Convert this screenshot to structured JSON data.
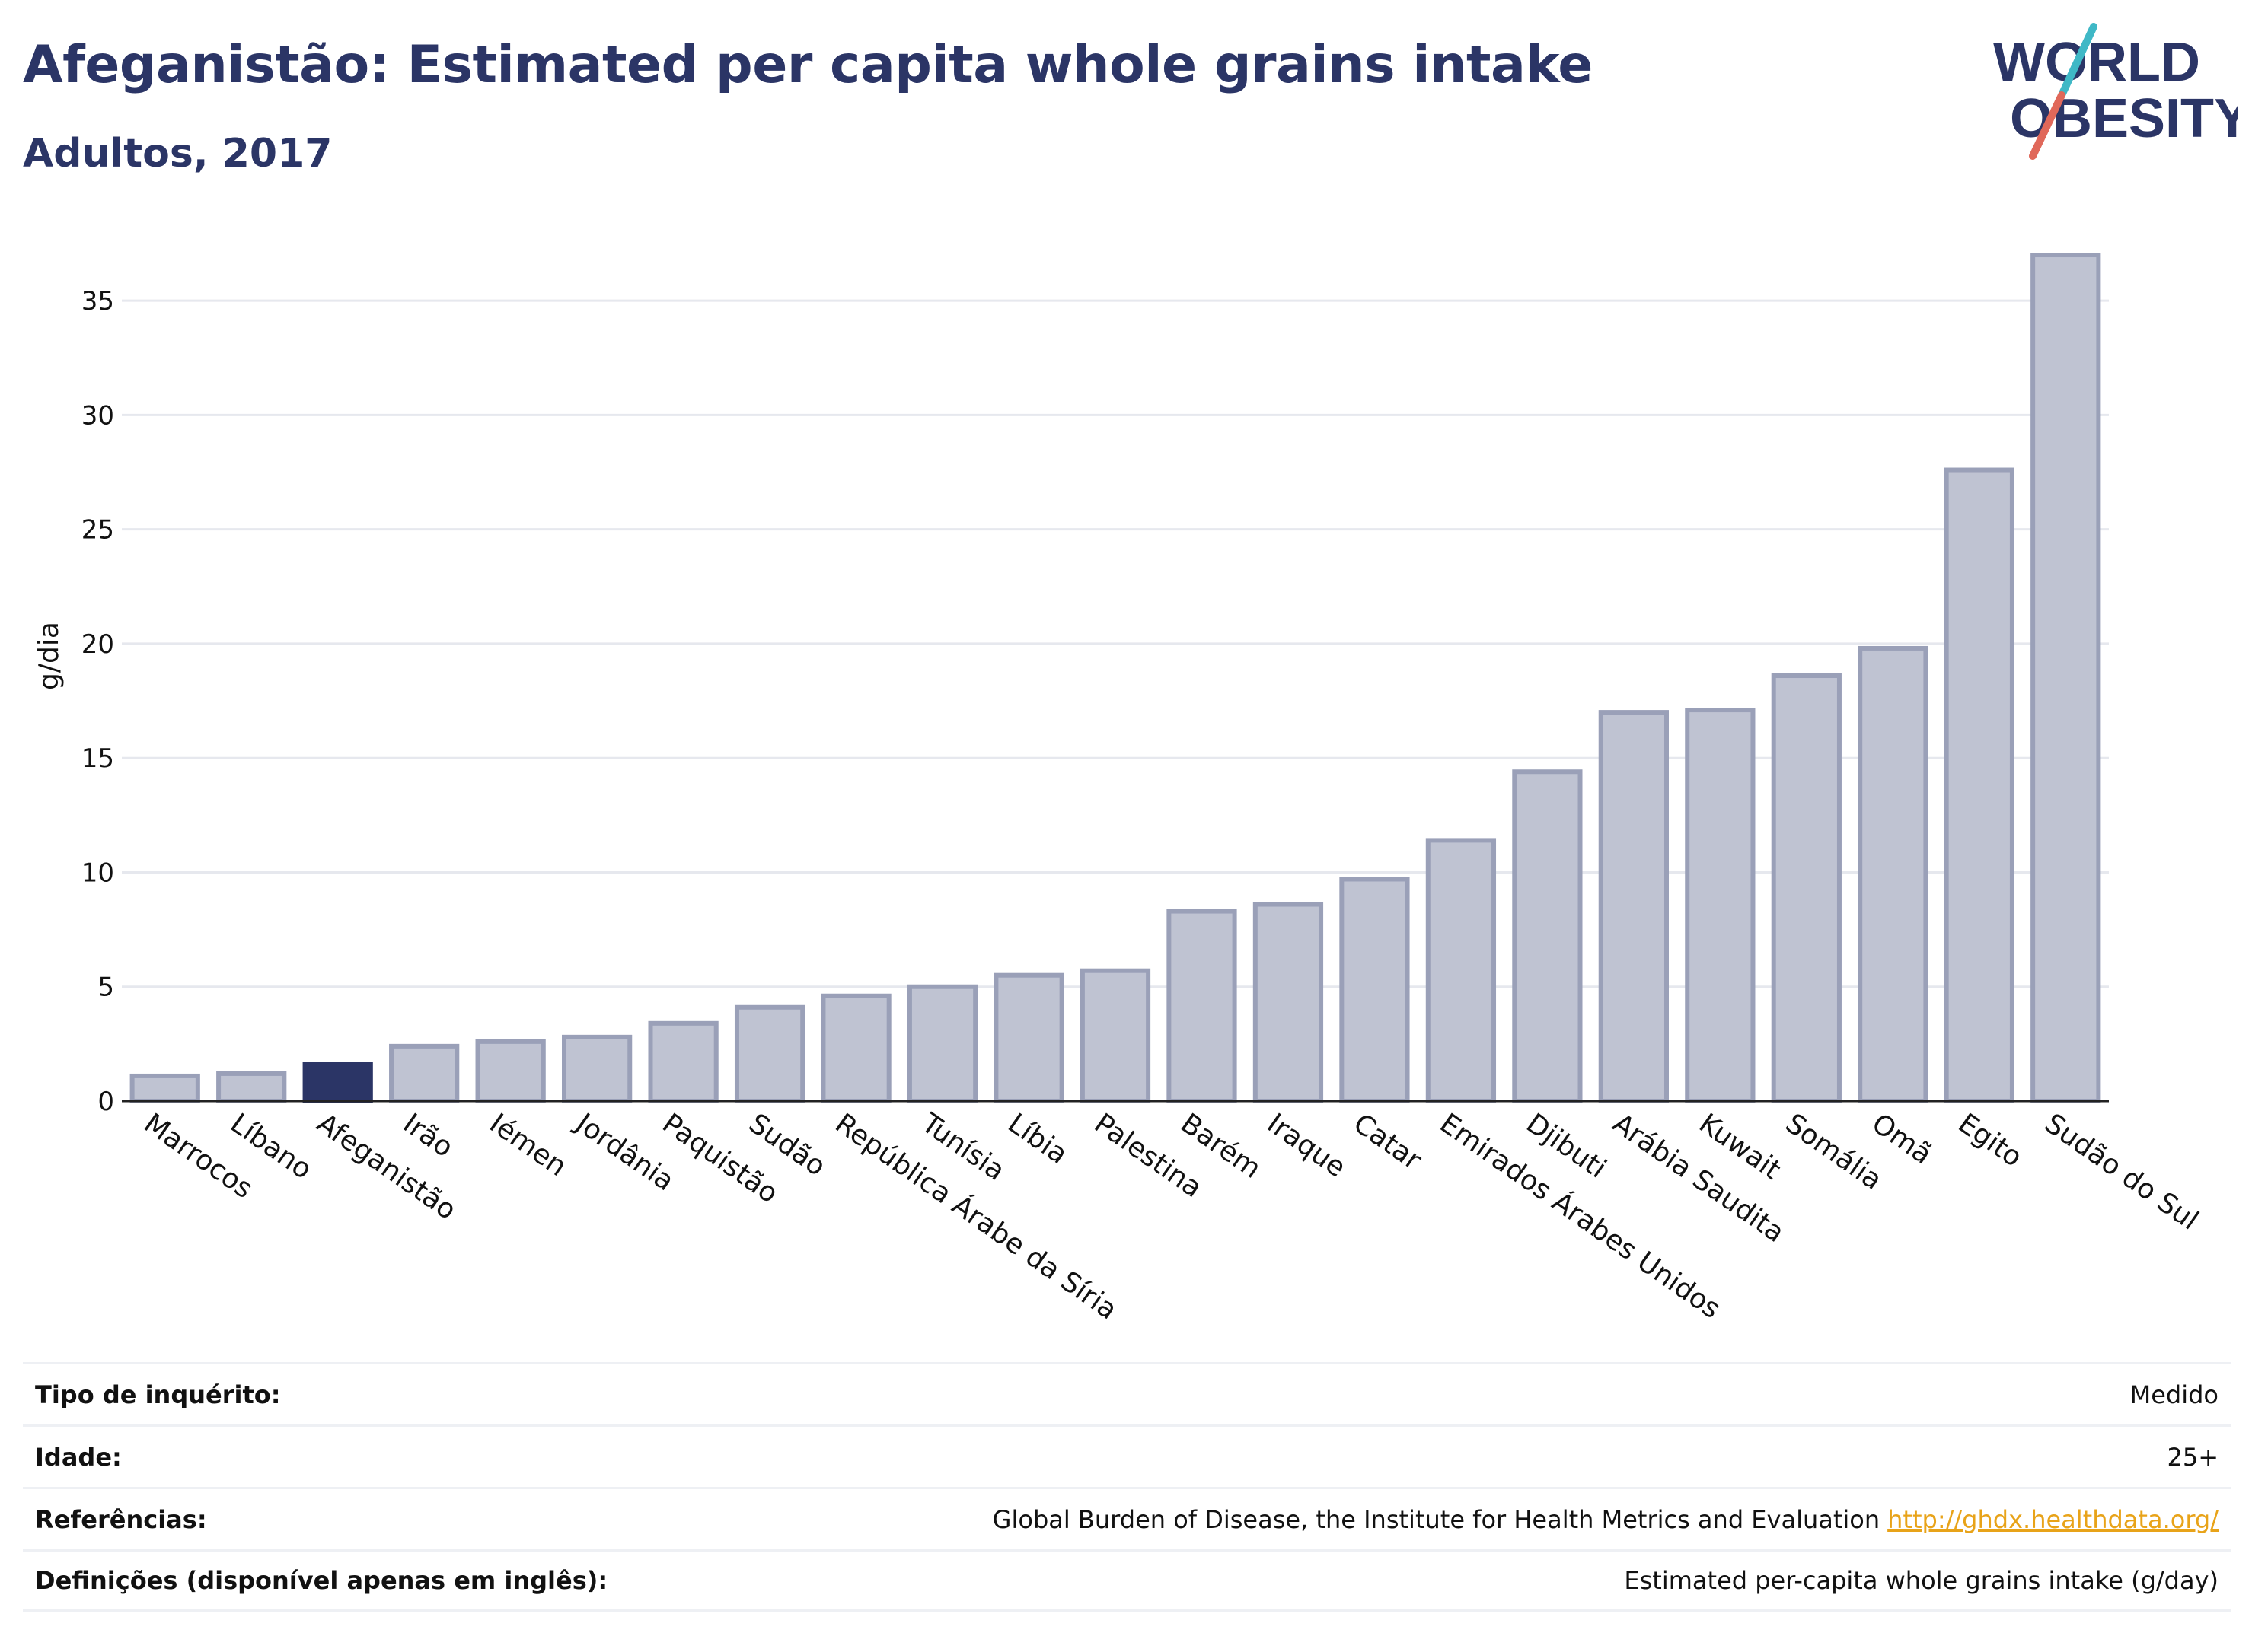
{
  "header": {
    "title": "Afeganistão: Estimated per capita whole grains intake",
    "subtitle": "Adultos, 2017"
  },
  "logo": {
    "line1": "WORLD",
    "line2": "OBESITY",
    "colors": {
      "text": "#2b3566",
      "accent_teal": "#3fb8c6",
      "accent_red": "#e0685a"
    }
  },
  "colors": {
    "bar": "#bfc3d2",
    "bar_border": "#9aa0b8",
    "highlight": "#2b3566",
    "grid": "#e6e8ee",
    "axis": "#222222"
  },
  "chart_data": {
    "type": "bar",
    "ylabel": "g/dia",
    "ylim": [
      0,
      37.5
    ],
    "yticks": [
      0,
      5,
      10,
      15,
      20,
      25,
      30,
      35
    ],
    "grid": true,
    "highlight": "Afeganistão",
    "categories": [
      "Marrocos",
      "Líbano",
      "Afeganistão",
      "Irão",
      "Iémen",
      "Jordânia",
      "Paquistão",
      "Sudão",
      "República Árabe da Síria",
      "Tunísia",
      "Líbia",
      "Palestina",
      "Barém",
      "Iraque",
      "Catar",
      "Emirados Árabes Unidos",
      "Djibuti",
      "Arábia Saudita",
      "Kuwait",
      "Somália",
      "Omã",
      "Egito",
      "Sudão do Sul"
    ],
    "values": [
      1.1,
      1.2,
      1.6,
      2.4,
      2.6,
      2.8,
      3.4,
      4.1,
      4.6,
      5.0,
      5.5,
      5.7,
      8.3,
      8.6,
      9.7,
      11.4,
      14.4,
      17.0,
      17.1,
      18.6,
      19.8,
      27.6,
      37.0
    ]
  },
  "meta": {
    "rows": [
      {
        "label": "Tipo de inquérito:",
        "value": "Medido"
      },
      {
        "label": "Idade:",
        "value": "25+"
      },
      {
        "label": "Referências:",
        "value": "Global Burden of Disease, the Institute for Health Metrics and Evaluation",
        "link": "http://ghdx.healthdata.org/"
      },
      {
        "label": "Definições (disponível apenas em inglês):",
        "value": "Estimated per-capita whole grains intake (g/day)"
      }
    ]
  }
}
